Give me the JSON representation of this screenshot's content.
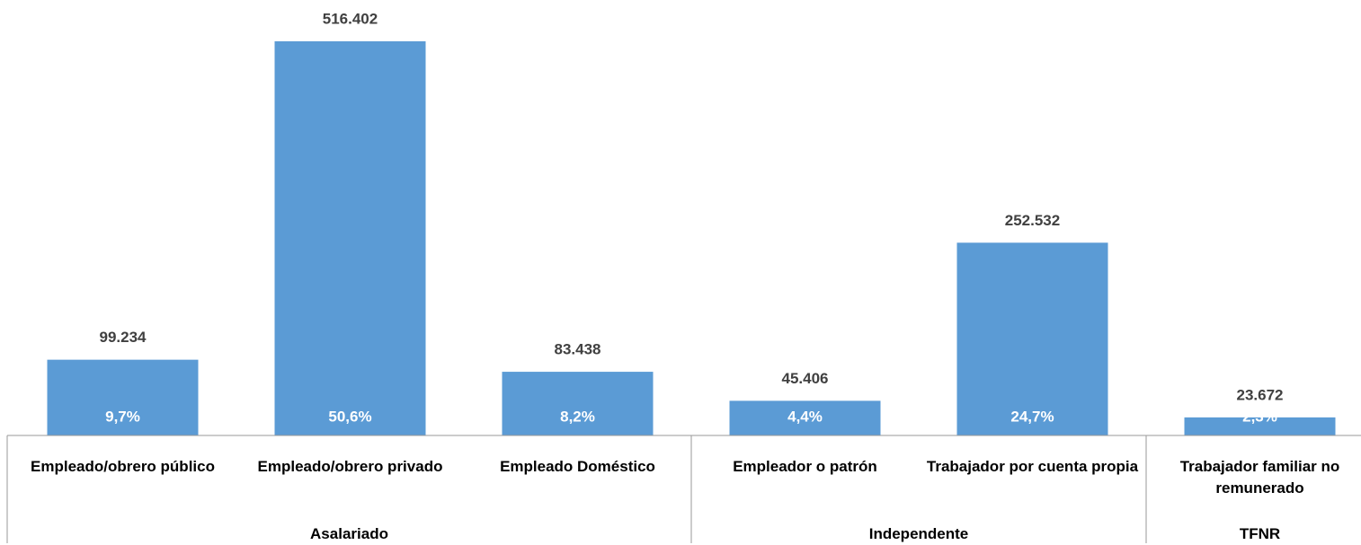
{
  "chart_data": {
    "type": "bar",
    "categories": [
      "Empleado/obrero público",
      "Empleado/obrero privado",
      "Empleado Doméstico",
      "Empleador o patrón",
      "Trabajador por cuenta propia",
      "Trabajador familiar no remunerado"
    ],
    "values": [
      99234,
      516402,
      83438,
      45406,
      252532,
      23672
    ],
    "value_labels": [
      "99.234",
      "516.402",
      "83.438",
      "45.406",
      "252.532",
      "23.672"
    ],
    "shares": {
      "values": [
        9.7,
        50.6,
        8.2,
        4.4,
        24.7,
        2.3
      ],
      "value_labels": [
        "9,7%",
        "50,6%",
        "8,2%",
        "4,4%",
        "24,7%",
        "2,3%"
      ]
    },
    "groups": [
      {
        "name": "Asalariado",
        "count": 3
      },
      {
        "name": "Independente",
        "count": 2
      },
      {
        "name": "TFNR",
        "count": 1
      }
    ],
    "color": "#5b9bd5"
  }
}
